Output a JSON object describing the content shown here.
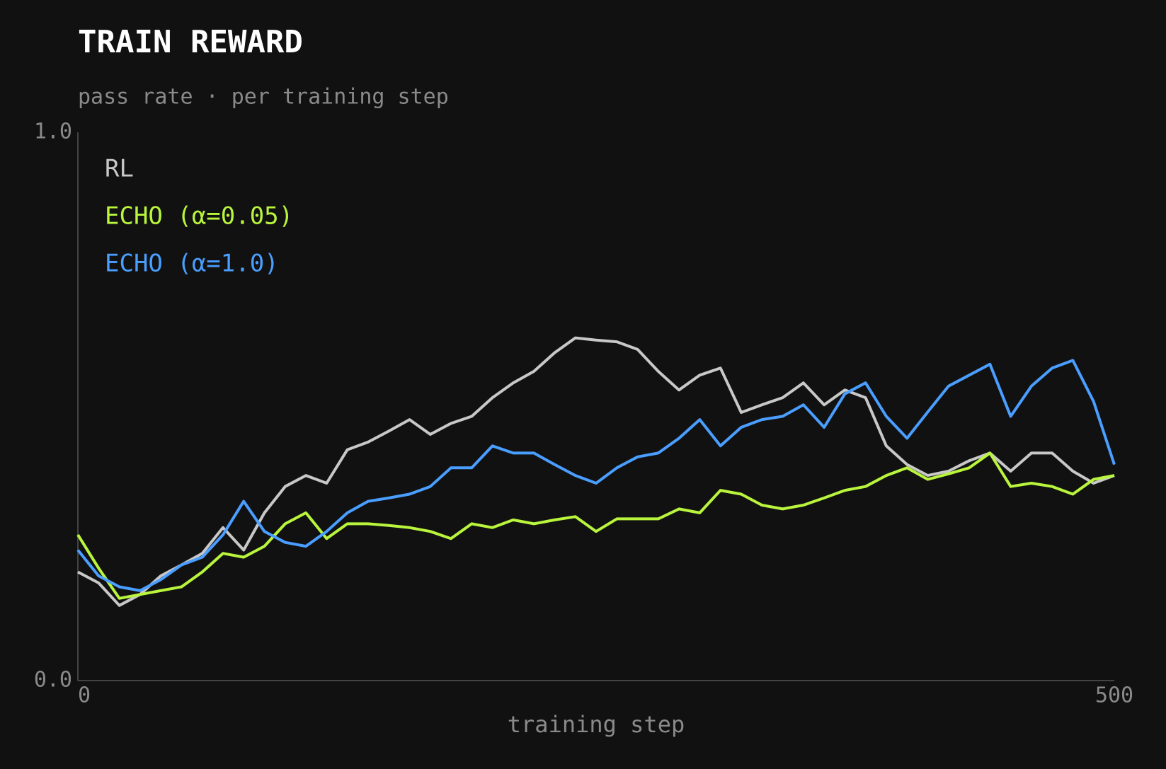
{
  "chart_data": {
    "type": "line",
    "title": "TRAIN REWARD",
    "subtitle": "pass rate · per training step",
    "x_label": "training step",
    "xlim": [
      0,
      500
    ],
    "xticks": [
      0,
      500
    ],
    "ylim": [
      0,
      1
    ],
    "yticks": [
      {
        "value": 0,
        "label": "0.0"
      },
      {
        "value": 1,
        "label": "1.0"
      }
    ],
    "x": [
      0,
      10,
      20,
      30,
      40,
      50,
      60,
      70,
      80,
      90,
      100,
      110,
      120,
      130,
      140,
      150,
      160,
      170,
      180,
      190,
      200,
      210,
      220,
      230,
      240,
      250,
      260,
      270,
      280,
      290,
      300,
      310,
      320,
      330,
      340,
      350,
      360,
      370,
      380,
      390,
      400,
      410,
      420,
      430,
      440,
      450,
      460,
      470,
      480,
      490,
      500
    ],
    "series": [
      {
        "name": "RL",
        "color": "#c8c8c8",
        "values": [
          0.198,
          0.178,
          0.137,
          0.157,
          0.191,
          0.211,
          0.232,
          0.279,
          0.238,
          0.306,
          0.354,
          0.374,
          0.36,
          0.421,
          0.435,
          0.455,
          0.476,
          0.449,
          0.469,
          0.482,
          0.516,
          0.543,
          0.564,
          0.598,
          0.625,
          0.621,
          0.618,
          0.604,
          0.564,
          0.53,
          0.557,
          0.57,
          0.489,
          0.503,
          0.516,
          0.543,
          0.503,
          0.53,
          0.516,
          0.428,
          0.394,
          0.374,
          0.382,
          0.401,
          0.415,
          0.382,
          0.415,
          0.415,
          0.382,
          0.36,
          0.374
        ]
      },
      {
        "name": "ECHO (α=0.05)",
        "color": "#b9f53c",
        "values": [
          0.266,
          0.205,
          0.15,
          0.157,
          0.164,
          0.171,
          0.198,
          0.232,
          0.225,
          0.245,
          0.286,
          0.306,
          0.259,
          0.286,
          0.286,
          0.283,
          0.279,
          0.272,
          0.259,
          0.286,
          0.279,
          0.293,
          0.286,
          0.293,
          0.299,
          0.272,
          0.295,
          0.295,
          0.295,
          0.313,
          0.306,
          0.347,
          0.34,
          0.32,
          0.313,
          0.32,
          0.333,
          0.347,
          0.354,
          0.374,
          0.388,
          0.367,
          0.377,
          0.388,
          0.415,
          0.354,
          0.36,
          0.354,
          0.34,
          0.367,
          0.374
        ]
      },
      {
        "name": "ECHO (α=1.0)",
        "color": "#4a9eff",
        "values": [
          0.238,
          0.191,
          0.171,
          0.164,
          0.184,
          0.211,
          0.225,
          0.266,
          0.327,
          0.272,
          0.252,
          0.245,
          0.272,
          0.306,
          0.327,
          0.333,
          0.34,
          0.354,
          0.388,
          0.388,
          0.428,
          0.415,
          0.415,
          0.394,
          0.374,
          0.36,
          0.388,
          0.408,
          0.415,
          0.442,
          0.476,
          0.428,
          0.462,
          0.476,
          0.482,
          0.503,
          0.462,
          0.523,
          0.543,
          0.482,
          0.442,
          0.49,
          0.537,
          0.557,
          0.577,
          0.482,
          0.537,
          0.57,
          0.584,
          0.509,
          0.394
        ]
      }
    ]
  }
}
